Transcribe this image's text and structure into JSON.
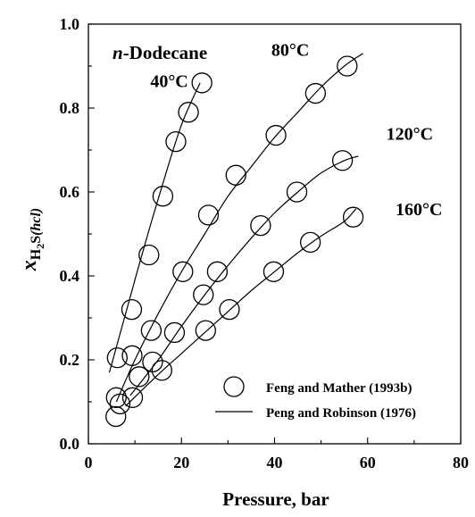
{
  "chart_data": {
    "type": "scatter",
    "title": "n-Dodecane",
    "title_parts": {
      "italic": "n",
      "rest": "-Dodecane"
    },
    "xlabel": "Pressure, bar",
    "ylabel_parts": {
      "x": "x",
      "sub": "H",
      "subsub": "2",
      "tail": "S",
      "italic_sub": "(hcl)"
    },
    "xlim": [
      0,
      80
    ],
    "ylim": [
      0.0,
      1.0
    ],
    "x_ticks": [
      "0",
      "20",
      "40",
      "60",
      "80"
    ],
    "y_ticks": [
      "0.0",
      "0.2",
      "0.4",
      "0.6",
      "0.8",
      "1.0"
    ],
    "grid": false,
    "legend_position": "bottom-right",
    "legend": {
      "markers": "Feng and Mather (1993b)",
      "line": "Peng and Robinson (1976)"
    },
    "series": [
      {
        "label": "40°C",
        "points": [
          [
            5.9,
            0.065
          ],
          [
            6.0,
            0.11
          ],
          [
            6.2,
            0.205
          ],
          [
            9.3,
            0.32
          ],
          [
            13.0,
            0.45
          ],
          [
            16.0,
            0.59
          ],
          [
            18.8,
            0.72
          ],
          [
            21.5,
            0.79
          ],
          [
            24.4,
            0.86
          ]
        ],
        "curve": [
          [
            4.5,
            0.17
          ],
          [
            8,
            0.31
          ],
          [
            12,
            0.47
          ],
          [
            16,
            0.62
          ],
          [
            20,
            0.76
          ],
          [
            24,
            0.86
          ]
        ]
      },
      {
        "label": "80°C",
        "points": [
          [
            6.8,
            0.095
          ],
          [
            9.4,
            0.21
          ],
          [
            13.5,
            0.27
          ],
          [
            18.5,
            0.265
          ],
          [
            20.3,
            0.41
          ],
          [
            25.8,
            0.545
          ],
          [
            31.7,
            0.64
          ],
          [
            40.3,
            0.735
          ],
          [
            48.8,
            0.835
          ],
          [
            55.6,
            0.9
          ]
        ],
        "curve": [
          [
            6,
            0.1
          ],
          [
            10,
            0.2
          ],
          [
            15,
            0.31
          ],
          [
            20,
            0.41
          ],
          [
            25,
            0.5
          ],
          [
            30,
            0.59
          ],
          [
            35,
            0.66
          ],
          [
            40,
            0.73
          ],
          [
            45,
            0.79
          ],
          [
            50,
            0.85
          ],
          [
            55,
            0.9
          ],
          [
            59,
            0.93
          ]
        ]
      },
      {
        "label": "120°C",
        "points": [
          [
            10.9,
            0.16
          ],
          [
            13.8,
            0.195
          ],
          [
            24.7,
            0.355
          ],
          [
            27.7,
            0.41
          ],
          [
            37.0,
            0.52
          ],
          [
            44.8,
            0.6
          ],
          [
            54.6,
            0.675
          ]
        ],
        "curve": [
          [
            9,
            0.115
          ],
          [
            15,
            0.2
          ],
          [
            20,
            0.28
          ],
          [
            25,
            0.355
          ],
          [
            30,
            0.425
          ],
          [
            35,
            0.49
          ],
          [
            40,
            0.55
          ],
          [
            45,
            0.6
          ],
          [
            50,
            0.645
          ],
          [
            55,
            0.675
          ],
          [
            58,
            0.685
          ]
        ]
      },
      {
        "label": "160°C",
        "points": [
          [
            9.5,
            0.11
          ],
          [
            15.8,
            0.175
          ],
          [
            25.2,
            0.27
          ],
          [
            30.3,
            0.32
          ],
          [
            39.8,
            0.41
          ],
          [
            47.7,
            0.48
          ],
          [
            56.9,
            0.54
          ]
        ],
        "curve": [
          [
            8,
            0.09
          ],
          [
            15,
            0.165
          ],
          [
            20,
            0.215
          ],
          [
            25,
            0.265
          ],
          [
            30,
            0.315
          ],
          [
            35,
            0.365
          ],
          [
            40,
            0.41
          ],
          [
            45,
            0.455
          ],
          [
            50,
            0.495
          ],
          [
            55,
            0.53
          ],
          [
            57.5,
            0.56
          ]
        ]
      }
    ],
    "annotations": [
      {
        "text": "40°C",
        "x": 13.3,
        "y": 0.85
      },
      {
        "text": "80°C",
        "x": 39.3,
        "y": 0.925
      },
      {
        "text": "120°C",
        "x": 64.0,
        "y": 0.725
      },
      {
        "text": "160°C",
        "x": 66.0,
        "y": 0.545
      }
    ]
  }
}
